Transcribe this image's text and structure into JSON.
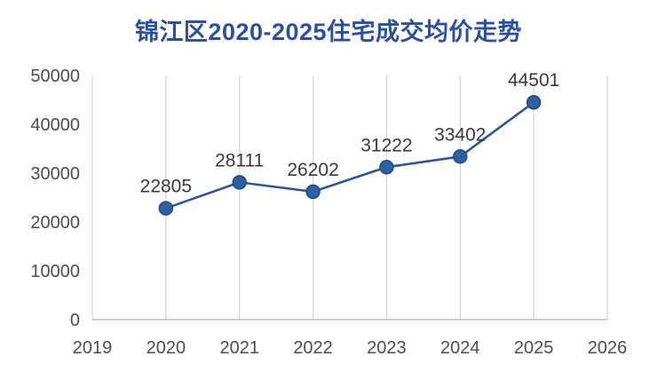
{
  "title_label": "锦江区2020-2025住宅成交均价走势",
  "colors": {
    "title": "#2B50A1",
    "line": "#2F5597",
    "marker_fill": "#2C5FA5",
    "marker_stroke": "#1F4E79",
    "grid": "#D6D6D6",
    "axis": "#BDBDBD",
    "tick_label": "#4D4D4D",
    "data_label": "#3A3A3A",
    "background": "#FFFFFF"
  },
  "chart_data": {
    "type": "line",
    "title": "锦江区2020-2025住宅成交均价走势",
    "x": [
      2020,
      2021,
      2022,
      2023,
      2024,
      2025
    ],
    "values": [
      22805,
      28111,
      26202,
      31222,
      33402,
      44501
    ],
    "point_labels": [
      "22805",
      "28111",
      "26202",
      "31222",
      "33402",
      "44501"
    ],
    "xlabel": "",
    "ylabel": "",
    "xlim": [
      2019,
      2026
    ],
    "ylim": [
      0,
      50000
    ],
    "x_ticks": [
      2019,
      2020,
      2021,
      2022,
      2023,
      2024,
      2025,
      2026
    ],
    "y_ticks": [
      0,
      10000,
      20000,
      30000,
      40000,
      50000
    ],
    "grid": "vertical-only",
    "legend": "none",
    "series_name": "住宅成交均价"
  }
}
